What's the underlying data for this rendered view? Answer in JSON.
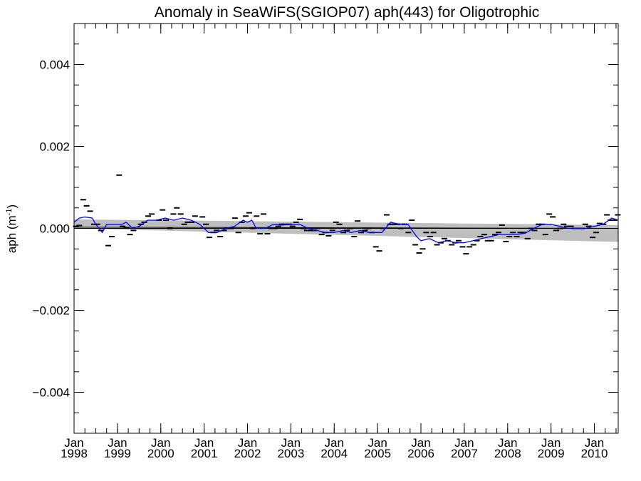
{
  "chart_data": {
    "type": "line",
    "title": "Anomaly in SeaWiFS(SGIOP07) aph(443) for Oligotrophic",
    "ylabel": "aph (m",
    "ylabel_unit_exp": "-1",
    "ylabel_close": ")",
    "ylim": [
      -0.005,
      0.005
    ],
    "xlim": [
      1998.0,
      2010.55
    ],
    "y_ticks": [
      {
        "value": 0.004,
        "label": "0.004"
      },
      {
        "value": 0.002,
        "label": "0.002"
      },
      {
        "value": 0.0,
        "label": "0.000"
      },
      {
        "value": -0.002,
        "label": "−0.002"
      },
      {
        "value": -0.004,
        "label": "−0.004"
      }
    ],
    "x_ticks": [
      {
        "value": 1998,
        "month": "Jan",
        "year": "1998"
      },
      {
        "value": 1999,
        "month": "Jan",
        "year": "1999"
      },
      {
        "value": 2000,
        "month": "Jan",
        "year": "2000"
      },
      {
        "value": 2001,
        "month": "Jan",
        "year": "2001"
      },
      {
        "value": 2002,
        "month": "Jan",
        "year": "2002"
      },
      {
        "value": 2003,
        "month": "Jan",
        "year": "2003"
      },
      {
        "value": 2004,
        "month": "Jan",
        "year": "2004"
      },
      {
        "value": 2005,
        "month": "Jan",
        "year": "2005"
      },
      {
        "value": 2006,
        "month": "Jan",
        "year": "2006"
      },
      {
        "value": 2007,
        "month": "Jan",
        "year": "2007"
      },
      {
        "value": 2008,
        "month": "Jan",
        "year": "2008"
      },
      {
        "value": 2009,
        "month": "Jan",
        "year": "2009"
      },
      {
        "value": 2010,
        "month": "Jan",
        "year": "2010"
      }
    ],
    "confidence_band": {
      "upper": [
        [
          1998.0,
          0.00022
        ],
        [
          2010.55,
          8e-05
        ]
      ],
      "lower": [
        [
          1998.0,
          0.0
        ],
        [
          2010.55,
          -0.00033
        ]
      ],
      "color": "#bebebe"
    },
    "zero_line": {
      "y": 0.0,
      "color": "#000000"
    },
    "trend_line": {
      "points": [
        [
          1998.0,
          3e-05
        ],
        [
          2010.55,
          0.0
        ]
      ],
      "color": "#000000"
    },
    "series": [
      {
        "style": "markers",
        "color": "#000000",
        "points": [
          [
            1998.04,
            5e-05
          ],
          [
            1998.12,
            7e-05
          ],
          [
            1998.21,
            0.0007
          ],
          [
            1998.29,
            0.00055
          ],
          [
            1998.37,
            0.00042
          ],
          [
            1998.46,
            0.0001
          ],
          [
            1998.54,
            0.0001
          ],
          [
            1998.62,
            -5e-05
          ],
          [
            1998.79,
            -0.00042
          ],
          [
            1998.87,
            -0.0002
          ],
          [
            1999.04,
            0.0013
          ],
          [
            1999.12,
            5e-05
          ],
          [
            1999.21,
            2e-05
          ],
          [
            1999.29,
            -0.00015
          ],
          [
            1999.37,
            -5e-05
          ],
          [
            1999.54,
            0.0001
          ],
          [
            1999.62,
            0.00015
          ],
          [
            1999.71,
            0.0003
          ],
          [
            1999.79,
            0.00035
          ],
          [
            1999.96,
            0.0002
          ],
          [
            2000.04,
            0.00045
          ],
          [
            2000.12,
            0.0002
          ],
          [
            2000.21,
            0.0
          ],
          [
            2000.29,
            0.00035
          ],
          [
            2000.37,
            0.0005
          ],
          [
            2000.46,
            0.00035
          ],
          [
            2000.54,
            0.0001
          ],
          [
            2000.62,
            0.00015
          ],
          [
            2000.71,
            0.00015
          ],
          [
            2000.79,
            0.0003
          ],
          [
            2000.96,
            0.00028
          ],
          [
            2001.04,
            0.0001
          ],
          [
            2001.12,
            -0.00022
          ],
          [
            2001.21,
            -0.0001
          ],
          [
            2001.29,
            -5e-05
          ],
          [
            2001.37,
            -0.0002
          ],
          [
            2001.46,
            -5e-05
          ],
          [
            2001.54,
            0.0
          ],
          [
            2001.62,
            0.0
          ],
          [
            2001.71,
            0.00025
          ],
          [
            2001.79,
            -0.0001
          ],
          [
            2001.87,
            0.00015
          ],
          [
            2001.96,
            0.0003
          ],
          [
            2002.04,
            0.00038
          ],
          [
            2002.12,
            0.0
          ],
          [
            2002.21,
            0.0003
          ],
          [
            2002.29,
            -0.00013
          ],
          [
            2002.37,
            0.00035
          ],
          [
            2002.46,
            -0.00013
          ],
          [
            2002.54,
            0.0
          ],
          [
            2002.62,
            0.0
          ],
          [
            2002.71,
            5e-05
          ],
          [
            2002.79,
            0.0001
          ],
          [
            2002.87,
            0.0001
          ],
          [
            2002.96,
            0.0001
          ],
          [
            2003.04,
            5e-05
          ],
          [
            2003.12,
            0.00015
          ],
          [
            2003.21,
            0.00022
          ],
          [
            2003.29,
            0.0
          ],
          [
            2003.37,
            -5e-05
          ],
          [
            2003.46,
            -5e-05
          ],
          [
            2003.54,
            -5e-05
          ],
          [
            2003.62,
            0.0
          ],
          [
            2003.71,
            -0.00015
          ],
          [
            2003.79,
            -0.0001
          ],
          [
            2003.87,
            -0.00018
          ],
          [
            2003.96,
            -5e-05
          ],
          [
            2004.04,
            0.00015
          ],
          [
            2004.12,
            0.0001
          ],
          [
            2004.21,
            -0.0001
          ],
          [
            2004.29,
            -5e-05
          ],
          [
            2004.37,
            0.0
          ],
          [
            2004.46,
            -0.0002
          ],
          [
            2004.54,
            0.00018
          ],
          [
            2004.62,
            -0.0001
          ],
          [
            2004.71,
            -5e-05
          ],
          [
            2004.79,
            0.0
          ],
          [
            2004.87,
            -0.0001
          ],
          [
            2004.96,
            -0.00045
          ],
          [
            2005.04,
            -0.00055
          ],
          [
            2005.12,
            0.0
          ],
          [
            2005.21,
            0.00033
          ],
          [
            2005.29,
            0.0001
          ],
          [
            2005.37,
            0.0001
          ],
          [
            2005.46,
            0.0001
          ],
          [
            2005.54,
            0.0
          ],
          [
            2005.62,
            0.0001
          ],
          [
            2005.71,
            -0.0001
          ],
          [
            2005.79,
            0.0002
          ],
          [
            2005.87,
            -0.0004
          ],
          [
            2005.96,
            -0.0006
          ],
          [
            2006.04,
            -0.0005
          ],
          [
            2006.12,
            -0.0001
          ],
          [
            2006.21,
            -0.0002
          ],
          [
            2006.29,
            -0.0001
          ],
          [
            2006.37,
            -0.0004
          ],
          [
            2006.46,
            -0.00035
          ],
          [
            2006.54,
            -0.00025
          ],
          [
            2006.62,
            -0.0003
          ],
          [
            2006.71,
            -0.0004
          ],
          [
            2006.79,
            -0.00035
          ],
          [
            2006.87,
            -0.0003
          ],
          [
            2006.96,
            -0.00045
          ],
          [
            2007.04,
            -0.00062
          ],
          [
            2007.12,
            -0.00045
          ],
          [
            2007.21,
            -0.0004
          ],
          [
            2007.29,
            -0.0003
          ],
          [
            2007.37,
            -0.0002
          ],
          [
            2007.46,
            -0.00015
          ],
          [
            2007.54,
            -0.0003
          ],
          [
            2007.62,
            -0.0003
          ],
          [
            2007.71,
            -0.00015
          ],
          [
            2007.79,
            -0.0001
          ],
          [
            2007.87,
            8e-05
          ],
          [
            2007.96,
            -0.00032
          ],
          [
            2008.04,
            -0.0002
          ],
          [
            2008.12,
            -0.0001
          ],
          [
            2008.21,
            -0.0002
          ],
          [
            2008.29,
            -0.0001
          ],
          [
            2008.37,
            -0.0001
          ],
          [
            2008.46,
            -0.00025
          ],
          [
            2008.54,
            0.0
          ],
          [
            2008.62,
            -5e-05
          ],
          [
            2008.71,
            0.0001
          ],
          [
            2008.79,
            0.0001
          ],
          [
            2008.87,
            -0.00015
          ],
          [
            2008.96,
            0.00035
          ],
          [
            2009.04,
            0.00028
          ],
          [
            2009.12,
            -5e-05
          ],
          [
            2009.21,
            0.0
          ],
          [
            2009.29,
            0.0001
          ],
          [
            2009.37,
            5e-05
          ],
          [
            2009.46,
            5e-05
          ],
          [
            2009.54,
            0.0
          ],
          [
            2009.62,
            0.0
          ],
          [
            2009.71,
            0.0
          ],
          [
            2009.79,
            0.0001
          ],
          [
            2009.87,
            5e-05
          ],
          [
            2009.96,
            -0.00022
          ],
          [
            2010.04,
            -0.0001
          ],
          [
            2010.12,
            0.00012
          ],
          [
            2010.21,
            0.0001
          ],
          [
            2010.29,
            0.00033
          ],
          [
            2010.37,
            0.0002
          ],
          [
            2010.46,
            0.0002
          ],
          [
            2010.54,
            0.00033
          ]
        ]
      },
      {
        "style": "line",
        "color": "#0000ff",
        "points": [
          [
            1998.0,
            0.00015
          ],
          [
            1998.12,
            0.00025
          ],
          [
            1998.25,
            0.00028
          ],
          [
            1998.42,
            0.00025
          ],
          [
            1998.5,
            0.0001
          ],
          [
            1998.58,
            0.0
          ],
          [
            1998.65,
            -0.0001
          ],
          [
            1998.75,
            0.0001
          ],
          [
            1999.0,
            0.0001
          ],
          [
            1999.1,
            0.0001
          ],
          [
            1999.2,
            0.00015
          ],
          [
            1999.35,
            0.0
          ],
          [
            1999.5,
            5e-05
          ],
          [
            1999.7,
            0.0002
          ],
          [
            1999.9,
            0.0002
          ],
          [
            2000.1,
            0.00025
          ],
          [
            2000.3,
            0.0002
          ],
          [
            2000.5,
            0.00025
          ],
          [
            2000.7,
            0.0002
          ],
          [
            2000.9,
            0.0001
          ],
          [
            2001.0,
            0.0
          ],
          [
            2001.1,
            -0.0001
          ],
          [
            2001.3,
            -0.0001
          ],
          [
            2001.5,
            0.0
          ],
          [
            2001.7,
            5e-05
          ],
          [
            2001.9,
            0.0002
          ],
          [
            2002.0,
            0.00015
          ],
          [
            2002.1,
            0.0002
          ],
          [
            2002.2,
            0.0
          ],
          [
            2002.4,
            0.0
          ],
          [
            2002.6,
            0.0001
          ],
          [
            2002.8,
            8e-05
          ],
          [
            2003.0,
            0.0001
          ],
          [
            2003.2,
            0.0001
          ],
          [
            2003.4,
            0.0
          ],
          [
            2003.6,
            -5e-05
          ],
          [
            2003.8,
            -0.0001
          ],
          [
            2004.0,
            -0.0001
          ],
          [
            2004.2,
            -5e-05
          ],
          [
            2004.4,
            -0.0001
          ],
          [
            2004.6,
            -5e-05
          ],
          [
            2004.8,
            -0.0001
          ],
          [
            2005.0,
            -0.0001
          ],
          [
            2005.1,
            -0.0001
          ],
          [
            2005.3,
            0.00015
          ],
          [
            2005.5,
            0.0001
          ],
          [
            2005.7,
            0.0001
          ],
          [
            2005.9,
            -0.0002
          ],
          [
            2006.0,
            -0.0003
          ],
          [
            2006.2,
            -0.00025
          ],
          [
            2006.4,
            -0.00035
          ],
          [
            2006.6,
            -0.0003
          ],
          [
            2006.8,
            -0.00035
          ],
          [
            2007.0,
            -0.00035
          ],
          [
            2007.2,
            -0.0003
          ],
          [
            2007.4,
            -0.00025
          ],
          [
            2007.6,
            -0.0002
          ],
          [
            2007.8,
            -0.00015
          ],
          [
            2008.0,
            -0.00015
          ],
          [
            2008.2,
            -0.00015
          ],
          [
            2008.4,
            -0.00012
          ],
          [
            2008.6,
            0.0
          ],
          [
            2008.8,
            0.0001
          ],
          [
            2009.0,
            0.0001
          ],
          [
            2009.2,
            5e-05
          ],
          [
            2009.4,
            0.0
          ],
          [
            2009.6,
            0.0
          ],
          [
            2009.8,
            0.0
          ],
          [
            2010.0,
            5e-05
          ],
          [
            2010.2,
            0.0001
          ],
          [
            2010.4,
            0.00025
          ],
          [
            2010.55,
            0.0002
          ]
        ]
      }
    ],
    "colors": {
      "axis": "#000000",
      "band": "#bebebe",
      "running_mean": "#0000ff",
      "markers": "#000000"
    }
  }
}
